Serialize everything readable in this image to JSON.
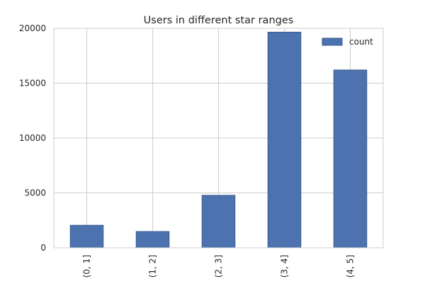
{
  "chart_data": {
    "type": "bar",
    "title": "Users in different star ranges",
    "xlabel": "",
    "ylabel": "",
    "categories": [
      "(0, 1]",
      "(1, 2]",
      "(2, 3]",
      "(3, 4]",
      "(4, 5]"
    ],
    "series": [
      {
        "name": "count",
        "values": [
          2050,
          1480,
          4780,
          19650,
          16200
        ]
      }
    ],
    "ylim": [
      0,
      20000
    ],
    "yticks": [
      0,
      5000,
      10000,
      15000,
      20000
    ],
    "grid": true,
    "legend": "top-right",
    "colors": {
      "bar_fill": "#4c72b0",
      "bar_edge": "#3a5a8c",
      "grid": "#cccccc",
      "frame": "#cccccc",
      "text": "#262626"
    }
  }
}
